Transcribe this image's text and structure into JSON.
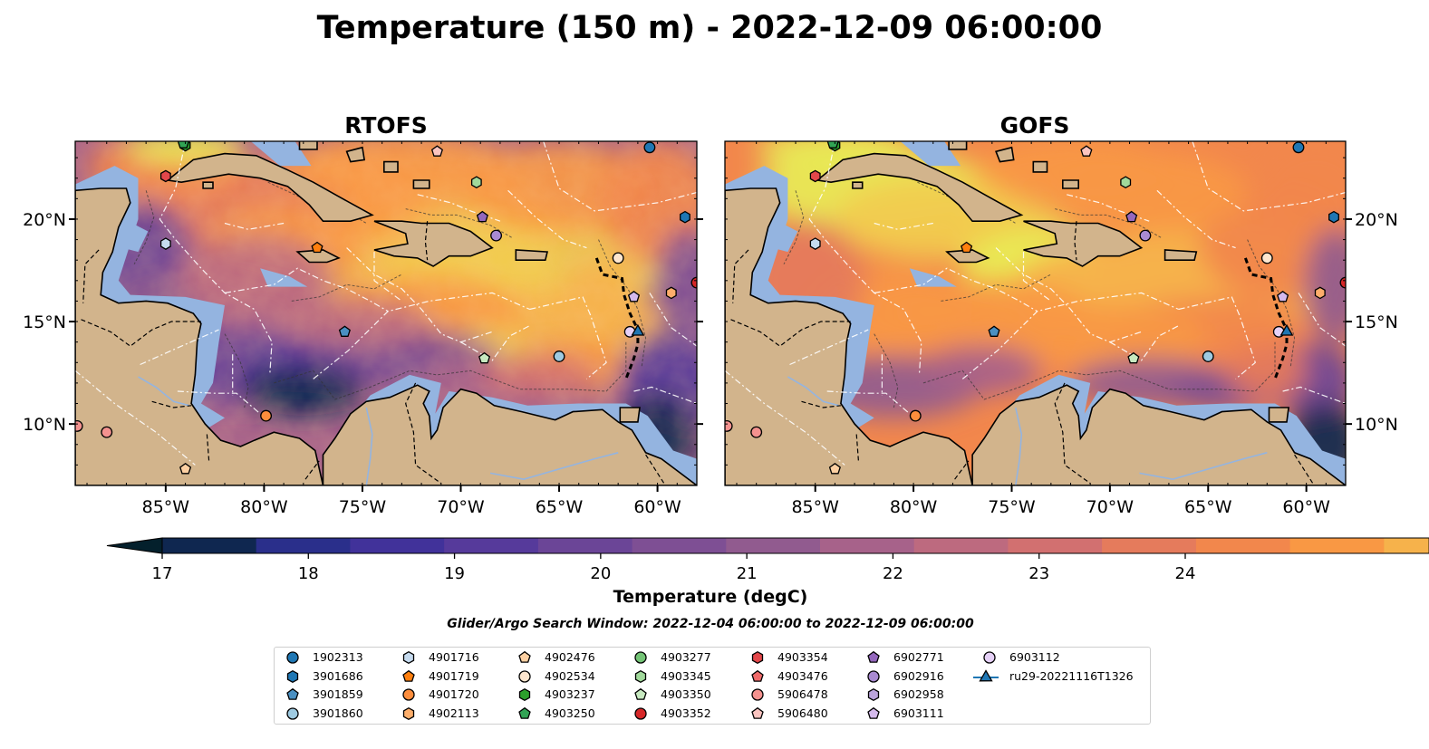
{
  "title": "Temperature (150 m) - 2022-12-09 06:00:00",
  "panels": [
    {
      "name": "RTOFS"
    },
    {
      "name": "GOFS"
    }
  ],
  "map": {
    "lon_range": [
      -89.6,
      -58.0
    ],
    "lat_range": [
      7.0,
      23.8
    ],
    "lon_ticks": [
      "85°W",
      "80°W",
      "75°W",
      "70°W",
      "65°W",
      "60°W"
    ],
    "lat_ticks": [
      "10°N",
      "15°N",
      "20°N"
    ],
    "land_color": "#d2b48c",
    "shelf_color": "#94b4e0",
    "left_ticks_side": "left",
    "right_ticks_side": "right"
  },
  "colorbar": {
    "min": 17,
    "max": 24,
    "ticks": [
      "17",
      "18",
      "19",
      "20",
      "21",
      "22",
      "23",
      "24"
    ],
    "label": "Temperature (degC)",
    "colors": [
      "#04202c",
      "#0f2750",
      "#2a2f8b",
      "#41329a",
      "#563a9b",
      "#6b4597",
      "#7e4f94",
      "#915b8f",
      "#a7628a",
      "#bd6a7f",
      "#d27070",
      "#e57b5c",
      "#f2874c",
      "#f99844",
      "#f6b24b",
      "#f2cc4e",
      "#e8eb56"
    ]
  },
  "search_window": "Glider/Argo Search Window: 2022-12-04 06:00:00 to 2022-12-09 06:00:00",
  "legend": [
    {
      "label": "1902313",
      "marker": "circle",
      "color": "#1f77b4"
    },
    {
      "label": "3901686",
      "marker": "hexagon",
      "color": "#1f77b4"
    },
    {
      "label": "3901859",
      "marker": "pentagon",
      "color": "#4a90c2"
    },
    {
      "label": "3901860",
      "marker": "circle",
      "color": "#9ecae1"
    },
    {
      "label": "4901716",
      "marker": "hexagon",
      "color": "#c6dbef"
    },
    {
      "label": "4901719",
      "marker": "pentagon",
      "color": "#ff7f0e"
    },
    {
      "label": "4901720",
      "marker": "circle",
      "color": "#fd8d3c"
    },
    {
      "label": "4902113",
      "marker": "hexagon",
      "color": "#fdae6b"
    },
    {
      "label": "4902476",
      "marker": "pentagon",
      "color": "#fdd0a2"
    },
    {
      "label": "4902534",
      "marker": "circle",
      "color": "#fee6ce"
    },
    {
      "label": "4903237",
      "marker": "hexagon",
      "color": "#2ca02c"
    },
    {
      "label": "4903250",
      "marker": "pentagon",
      "color": "#31a354"
    },
    {
      "label": "4903277",
      "marker": "circle",
      "color": "#74c476"
    },
    {
      "label": "4903345",
      "marker": "hexagon",
      "color": "#a1d99b"
    },
    {
      "label": "4903350",
      "marker": "pentagon",
      "color": "#c7e9c0"
    },
    {
      "label": "4903352",
      "marker": "circle",
      "color": "#d62728"
    },
    {
      "label": "4903354",
      "marker": "hexagon",
      "color": "#e3474a"
    },
    {
      "label": "4903476",
      "marker": "pentagon",
      "color": "#f06a6a"
    },
    {
      "label": "5906478",
      "marker": "circle",
      "color": "#f4928f"
    },
    {
      "label": "5906480",
      "marker": "pentagon",
      "color": "#fbc4c0"
    },
    {
      "label": "6902771",
      "marker": "pentagon",
      "color": "#9467bd"
    },
    {
      "label": "6902916",
      "marker": "circle",
      "color": "#a98ad1"
    },
    {
      "label": "6902958",
      "marker": "hexagon",
      "color": "#bba4dc"
    },
    {
      "label": "6903111",
      "marker": "pentagon",
      "color": "#d4b9ec"
    },
    {
      "label": "6903112",
      "marker": "circle",
      "color": "#e6d1f7"
    },
    {
      "label": "ru29-20221116T1326",
      "marker": "triangle-line",
      "color": "#1f77b4"
    }
  ],
  "floats": [
    {
      "label": "1902313",
      "lon": -60.4,
      "lat": 23.5
    },
    {
      "label": "3901686",
      "lon": -58.6,
      "lat": 20.1
    },
    {
      "label": "3901859",
      "lon": -75.9,
      "lat": 14.5
    },
    {
      "label": "3901860",
      "lon": -65.0,
      "lat": 13.3
    },
    {
      "label": "4901716",
      "lon": -85.0,
      "lat": 18.8
    },
    {
      "label": "4901719",
      "lon": -77.3,
      "lat": 18.6
    },
    {
      "label": "4901720",
      "lon": -79.9,
      "lat": 10.4
    },
    {
      "label": "4902113",
      "lon": -59.3,
      "lat": 16.4
    },
    {
      "label": "4902476",
      "lon": -84.0,
      "lat": 7.8
    },
    {
      "label": "4902534",
      "lon": -62.0,
      "lat": 18.1
    },
    {
      "label": "4903237",
      "lon": -84.0,
      "lat": 23.6
    },
    {
      "label": "4903250",
      "lon": -84.1,
      "lat": 23.7
    },
    {
      "label": "4903345",
      "lon": -69.2,
      "lat": 21.8
    },
    {
      "label": "4903350",
      "lon": -68.8,
      "lat": 13.2
    },
    {
      "label": "4903352",
      "lon": -58.0,
      "lat": 16.9
    },
    {
      "label": "4903354",
      "lon": -85.0,
      "lat": 22.1
    },
    {
      "label": "5906478",
      "lon": -88.0,
      "lat": 9.6
    },
    {
      "label": "5906480",
      "lon": -71.2,
      "lat": 23.3
    },
    {
      "label": "5906478",
      "lon": -89.5,
      "lat": 9.9
    },
    {
      "label": "6902771",
      "lon": -68.9,
      "lat": 20.1
    },
    {
      "label": "6902916",
      "lon": -68.2,
      "lat": 19.2
    },
    {
      "label": "6903111",
      "lon": -61.2,
      "lat": 16.2
    },
    {
      "label": "6903112",
      "lon": -61.4,
      "lat": 14.5
    },
    {
      "label": "ru29-20221116T1326",
      "lon": -61.0,
      "lat": 14.5
    }
  ]
}
